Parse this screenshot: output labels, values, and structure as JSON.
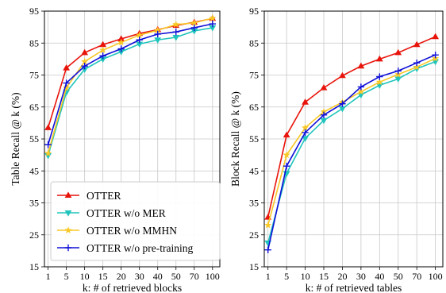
{
  "chart_data": [
    {
      "type": "line",
      "xlabel": "k: # of retrieved blocks",
      "ylabel": "Table Recall @ k (%)",
      "categories": [
        "1",
        "5",
        "10",
        "15",
        "20",
        "30",
        "40",
        "50",
        "70",
        "100"
      ],
      "ylim": [
        15,
        95
      ],
      "yticks": [
        15,
        25,
        35,
        45,
        55,
        65,
        75,
        85,
        95
      ],
      "grid": true,
      "legend": "lower-right",
      "series": [
        {
          "name": "OTTER",
          "color": "#e8140b",
          "marker": "triangle-up",
          "values": [
            58.5,
            77.2,
            82.0,
            84.5,
            86.3,
            88.0,
            89.2,
            90.5,
            91.5,
            92.7
          ]
        },
        {
          "name": "OTTER w/o MER",
          "color": "#20c4bc",
          "marker": "triangle-down",
          "values": [
            49.8,
            69.6,
            76.8,
            80.0,
            82.3,
            84.7,
            86.0,
            86.8,
            88.8,
            89.8
          ]
        },
        {
          "name": "OTTER w/o MMHN",
          "color": "#f8c826",
          "marker": "star",
          "values": [
            50.5,
            71.0,
            79.2,
            82.8,
            85.2,
            87.5,
            89.0,
            90.8,
            91.3,
            92.8
          ]
        },
        {
          "name": "OTTER w/o pre-training",
          "color": "#1010d8",
          "marker": "plus",
          "values": [
            53.2,
            72.5,
            77.8,
            81.0,
            83.2,
            86.0,
            87.8,
            88.5,
            89.8,
            91.0
          ]
        }
      ]
    },
    {
      "type": "line",
      "xlabel": "k: # of retrieved tables",
      "ylabel": "Block Recall @ k (%)",
      "categories": [
        "1",
        "5",
        "10",
        "15",
        "20",
        "30",
        "40",
        "50",
        "70",
        "100"
      ],
      "ylim": [
        15,
        95
      ],
      "yticks": [
        15,
        25,
        35,
        45,
        55,
        65,
        75,
        85,
        95
      ],
      "grid": true,
      "legend": "none",
      "series": [
        {
          "name": "OTTER",
          "color": "#e8140b",
          "marker": "triangle-up",
          "values": [
            30.5,
            56.2,
            66.5,
            71.0,
            74.8,
            77.8,
            80.0,
            82.0,
            84.5,
            87.0
          ]
        },
        {
          "name": "OTTER w/o MER",
          "color": "#20c4bc",
          "marker": "triangle-down",
          "values": [
            22.5,
            44.2,
            55.2,
            60.8,
            64.5,
            68.8,
            71.8,
            73.8,
            77.0,
            79.2
          ]
        },
        {
          "name": "OTTER w/o MMHN",
          "color": "#f8c826",
          "marker": "star",
          "values": [
            28.0,
            50.0,
            58.5,
            63.5,
            66.5,
            69.8,
            72.8,
            75.2,
            77.5,
            80.2
          ]
        },
        {
          "name": "OTTER w/o pre-training",
          "color": "#1010d8",
          "marker": "plus",
          "values": [
            20.3,
            46.5,
            57.0,
            62.5,
            66.0,
            71.3,
            74.5,
            76.3,
            78.8,
            81.3
          ]
        }
      ]
    }
  ]
}
